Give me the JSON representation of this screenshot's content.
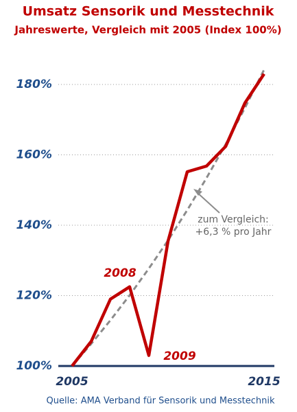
{
  "chart_data": {
    "type": "line",
    "title": "Umsatz Sensorik und Messtechnik",
    "subtitle": "Jahreswerte, Vergleich mit 2005 (Index 100%)",
    "source": "Quelle: AMA Verband für Sensorik und Messtechnik",
    "x": [
      2005,
      2006,
      2007,
      2008,
      2009,
      2010,
      2011,
      2012,
      2013,
      2014,
      2015
    ],
    "series": [
      {
        "color": "#c00000",
        "dashed": false,
        "values": [
          100,
          107,
          119,
          122.5,
          103,
          135.5,
          155.2,
          156.8,
          162.4,
          174.7,
          183
        ]
      },
      {
        "color": "#8c8c8c",
        "dashed": true,
        "values": [
          100,
          106.3,
          113,
          120.1,
          127.7,
          135.7,
          144.3,
          153.4,
          163,
          173.3,
          184.2
        ]
      }
    ],
    "xlim": [
      2005,
      2015
    ],
    "xticks": [
      2005,
      2015
    ],
    "ylim": [
      100,
      180
    ],
    "yticks": [
      {
        "value": 100,
        "label": "100%"
      },
      {
        "value": 120,
        "label": "120%"
      },
      {
        "value": 140,
        "label": "140%"
      },
      {
        "value": 160,
        "label": "160%"
      },
      {
        "value": 180,
        "label": "180%"
      }
    ],
    "grid": true,
    "annotations": [
      "2008",
      "2009",
      "zum Vergleich:",
      "+6,3 % pro Jahr"
    ]
  }
}
